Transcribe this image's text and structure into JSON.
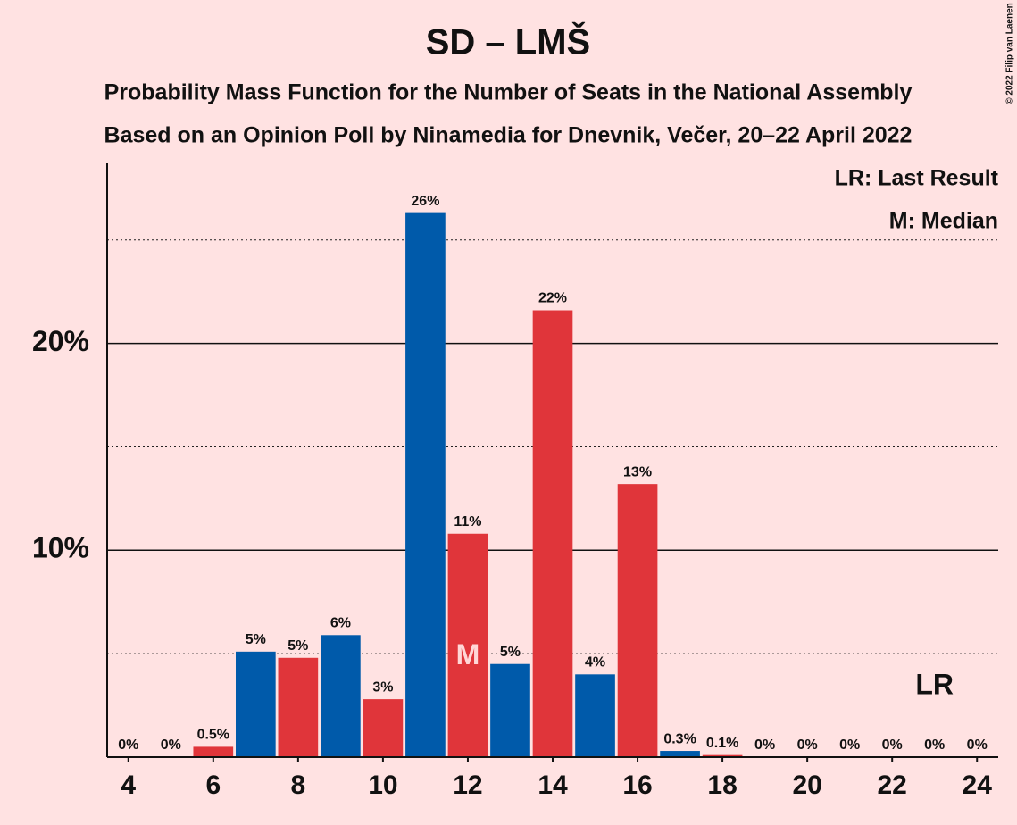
{
  "chart_data": {
    "type": "bar",
    "title": "SD – LMŠ",
    "subtitle": "Probability Mass Function for the Number of Seats in the National Assembly",
    "subtitle2": "Based on an Opinion Poll by Ninamedia for Dnevnik, Večer, 20–22 April 2022",
    "copyright": "© 2022 Filip van Laenen",
    "x": [
      4,
      5,
      6,
      7,
      8,
      9,
      10,
      11,
      12,
      13,
      14,
      15,
      16,
      17,
      18,
      19,
      20,
      21,
      22,
      23,
      24
    ],
    "values": [
      0,
      0,
      0.5,
      5.1,
      4.8,
      5.9,
      2.8,
      26.3,
      10.8,
      4.5,
      21.6,
      4.0,
      13.2,
      0.3,
      0.1,
      0,
      0,
      0,
      0,
      0,
      0
    ],
    "value_labels": [
      "0%",
      "0%",
      "0.5%",
      "5%",
      "5%",
      "6%",
      "3%",
      "26%",
      "11%",
      "5%",
      "22%",
      "4%",
      "13%",
      "0.3%",
      "0.1%",
      "0%",
      "0%",
      "0%",
      "0%",
      "0%",
      "0%"
    ],
    "colors": [
      "#e0353a",
      "#005aaa",
      "#e0353a",
      "#005aaa",
      "#e0353a",
      "#005aaa",
      "#e0353a",
      "#005aaa",
      "#e0353a",
      "#005aaa",
      "#e0353a",
      "#005aaa",
      "#e0353a",
      "#005aaa",
      "#e0353a",
      "#005aaa",
      "#e0353a",
      "#005aaa",
      "#e0353a",
      "#005aaa",
      "#e0353a"
    ],
    "xlim": [
      3.5,
      24.5
    ],
    "xticks": [
      4,
      6,
      8,
      10,
      12,
      14,
      16,
      18,
      20,
      22,
      24
    ],
    "ylim": [
      0,
      28.7
    ],
    "yticks": [
      {
        "value": 10,
        "label": "10%"
      },
      {
        "value": 20,
        "label": "20%"
      }
    ],
    "minor_gridlines": [
      5,
      15,
      25
    ],
    "median": 12,
    "median_label": "M",
    "last_result": 23,
    "last_result_label": "LR",
    "legend": [
      "LR: Last Result",
      "M: Median"
    ]
  }
}
